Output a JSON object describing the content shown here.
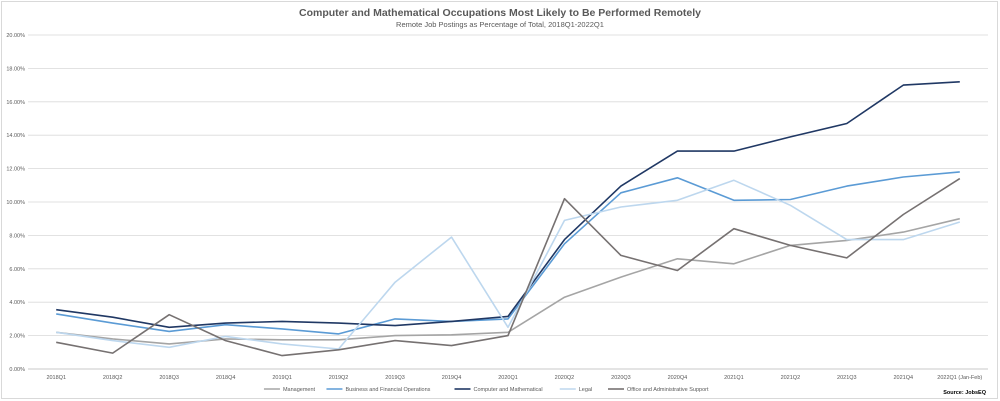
{
  "title": "Computer and Mathematical Occupations Most Likely to Be Performed Remotely",
  "subtitle": "Remote Job Postings as Percentage of Total, 2018Q1-2022Q1",
  "source": "Source: JobsEQ",
  "chart_data": {
    "type": "line",
    "title": "Computer and Mathematical Occupations Most Likely to Be Performed Remotely",
    "subtitle": "Remote Job Postings as Percentage of Total, 2018Q1-2022Q1",
    "categories": [
      "2018Q1",
      "2018Q2",
      "2018Q3",
      "2018Q4",
      "2019Q1",
      "2019Q2",
      "2019Q3",
      "2019Q4",
      "2020Q1",
      "2020Q2",
      "2020Q3",
      "2020Q4",
      "2021Q1",
      "2021Q2",
      "2021Q3",
      "2021Q4",
      "2022Q1 (Jan-Feb)"
    ],
    "ylim": [
      0,
      20
    ],
    "yticks": [
      "0.00%",
      "2.00%",
      "4.00%",
      "6.00%",
      "8.00%",
      "10.00%",
      "12.00%",
      "14.00%",
      "16.00%",
      "18.00%",
      "20.00%"
    ],
    "grid": true,
    "legend": "bottom",
    "series": [
      {
        "name": "Management",
        "color": "#a5a5a5",
        "values": [
          2.2,
          1.8,
          1.5,
          1.8,
          1.75,
          1.75,
          2.0,
          2.05,
          2.2,
          4.3,
          5.5,
          6.6,
          6.3,
          7.4,
          7.7,
          8.2,
          9.0
        ]
      },
      {
        "name": "Business and Financial Operations",
        "color": "#5b9bd5",
        "values": [
          3.3,
          2.75,
          2.25,
          2.65,
          2.4,
          2.1,
          3.0,
          2.85,
          3.0,
          7.5,
          10.55,
          11.45,
          10.1,
          10.15,
          10.95,
          11.5,
          11.8
        ]
      },
      {
        "name": "Computer and Mathematical",
        "color": "#203864",
        "values": [
          3.55,
          3.1,
          2.5,
          2.75,
          2.85,
          2.75,
          2.6,
          2.85,
          3.15,
          7.75,
          10.95,
          13.05,
          13.05,
          13.9,
          14.7,
          17.0,
          17.2
        ]
      },
      {
        "name": "Legal",
        "color": "#bdd7ee",
        "values": [
          2.2,
          1.7,
          1.3,
          1.95,
          1.5,
          1.2,
          5.2,
          7.9,
          2.5,
          8.9,
          9.7,
          10.1,
          11.3,
          9.8,
          7.75,
          7.75,
          8.8
        ]
      },
      {
        "name": "Office and Administrative Support",
        "color": "#767171",
        "values": [
          1.6,
          0.95,
          3.25,
          1.7,
          0.8,
          1.15,
          1.7,
          1.4,
          2.0,
          10.2,
          6.8,
          5.9,
          8.4,
          7.4,
          6.65,
          9.25,
          11.4
        ]
      }
    ]
  }
}
